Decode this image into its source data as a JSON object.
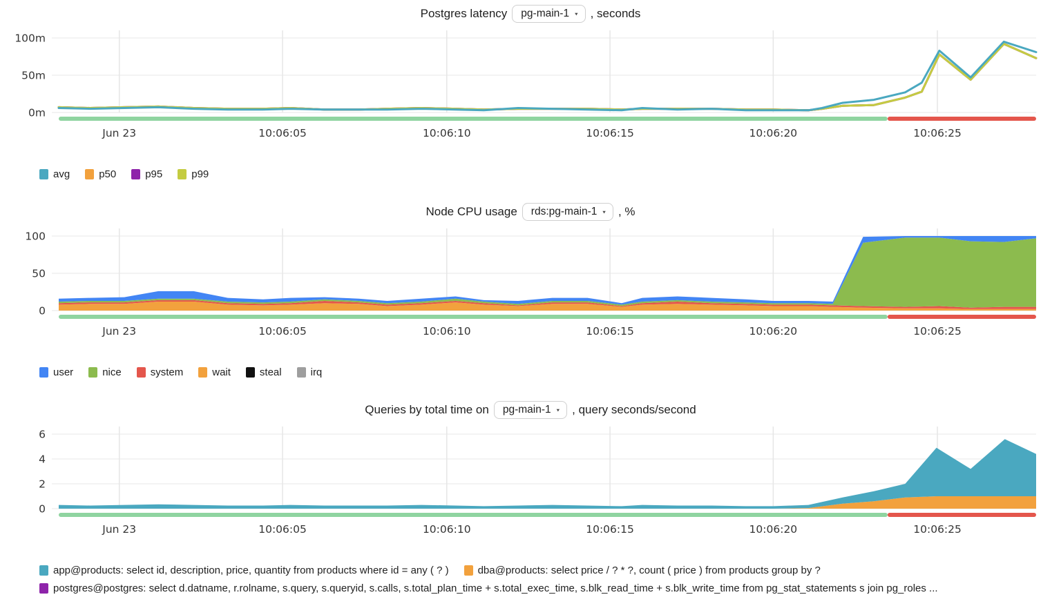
{
  "x_axis": {
    "tick_labels": [
      "Jun 23",
      "10:06:05",
      "10:06:10",
      "10:06:15",
      "10:06:20",
      "10:06:25"
    ]
  },
  "status_strip_colors": {
    "ok": "#8fd4a0",
    "alert": "#e4564c"
  },
  "chart_data": [
    {
      "type": "line",
      "title_prefix": "Postgres latency",
      "selector_value": "pg-main-1",
      "selector_caret": "▾",
      "title_suffix": ", seconds",
      "ylim": [
        0,
        107
      ],
      "y_ticks": [
        {
          "v": 0,
          "label": "0m"
        },
        {
          "v": 50,
          "label": "50m"
        },
        {
          "v": 100,
          "label": "100m"
        }
      ],
      "x_ticks": [
        {
          "f": 0.062,
          "label": "Jun 23"
        },
        {
          "f": 0.229,
          "label": "10:06:05"
        },
        {
          "f": 0.397,
          "label": "10:06:10"
        },
        {
          "f": 0.564,
          "label": "10:06:15"
        },
        {
          "f": 0.731,
          "label": "10:06:20"
        },
        {
          "f": 0.899,
          "label": "10:06:25"
        }
      ],
      "x": [
        0,
        0.032,
        0.067,
        0.102,
        0.138,
        0.173,
        0.209,
        0.237,
        0.272,
        0.307,
        0.336,
        0.371,
        0.406,
        0.435,
        0.47,
        0.505,
        0.541,
        0.576,
        0.597,
        0.633,
        0.668,
        0.703,
        0.731,
        0.767,
        0.781,
        0.802,
        0.834,
        0.866,
        0.883,
        0.901,
        0.933,
        0.967,
        1.0
      ],
      "unit": "milliseconds",
      "series": [
        {
          "name": "avg",
          "color": "#4aa8c0",
          "values": [
            6,
            5,
            6,
            7,
            5,
            4,
            4,
            5,
            4,
            4,
            4,
            5,
            4,
            3,
            6,
            5,
            4,
            3,
            6,
            4,
            5,
            3,
            3,
            3,
            6,
            13,
            17,
            27,
            40,
            83,
            47,
            95,
            81
          ]
        },
        {
          "name": "p50",
          "color": "#f2a13d",
          "values": [
            7,
            6,
            7,
            8,
            6,
            5,
            5,
            6,
            4,
            4,
            5,
            6,
            5,
            4,
            5,
            5,
            5,
            4,
            5,
            5,
            5,
            4,
            4,
            3,
            5,
            9,
            10,
            20,
            28,
            78,
            44,
            92,
            73
          ]
        },
        {
          "name": "p95",
          "color": "#8e24aa",
          "values": [
            7,
            6,
            7,
            8,
            6,
            5,
            5,
            6,
            4,
            4,
            5,
            6,
            5,
            4,
            5,
            5,
            5,
            4,
            5,
            5,
            5,
            4,
            4,
            3,
            5,
            9,
            10,
            20,
            28,
            78,
            44,
            92,
            73
          ]
        },
        {
          "name": "p99",
          "color": "#c4cc41",
          "values": [
            7,
            6,
            7,
            8,
            6,
            5,
            5,
            6,
            4,
            4,
            5,
            6,
            5,
            4,
            5,
            5,
            5,
            4,
            5,
            5,
            5,
            4,
            4,
            3,
            5,
            9,
            10,
            20,
            28,
            78,
            44,
            92,
            73
          ]
        }
      ],
      "draw_order": [
        1,
        2,
        3,
        0
      ],
      "status_strip": {
        "split_frac": 0.848
      }
    },
    {
      "type": "area",
      "title_prefix": "Node CPU usage",
      "selector_value": "rds:pg-main-1",
      "selector_caret": "▾",
      "title_suffix": ", %",
      "ylim": [
        0,
        106
      ],
      "y_ticks": [
        {
          "v": 0,
          "label": "0"
        },
        {
          "v": 50,
          "label": "50"
        },
        {
          "v": 100,
          "label": "100"
        }
      ],
      "x_ticks": [
        {
          "f": 0.062,
          "label": "Jun 23"
        },
        {
          "f": 0.229,
          "label": "10:06:05"
        },
        {
          "f": 0.397,
          "label": "10:06:10"
        },
        {
          "f": 0.564,
          "label": "10:06:15"
        },
        {
          "f": 0.731,
          "label": "10:06:20"
        },
        {
          "f": 0.899,
          "label": "10:06:25"
        }
      ],
      "x": [
        0,
        0.032,
        0.067,
        0.102,
        0.138,
        0.173,
        0.209,
        0.237,
        0.272,
        0.307,
        0.336,
        0.371,
        0.406,
        0.435,
        0.47,
        0.505,
        0.541,
        0.576,
        0.597,
        0.633,
        0.668,
        0.703,
        0.731,
        0.767,
        0.792,
        0.823,
        0.866,
        0.901,
        0.933,
        0.967,
        1.0
      ],
      "unit": "percent",
      "series": [
        {
          "name": "user",
          "color": "#4285f4",
          "values": [
            4,
            4,
            5,
            10,
            10,
            5,
            4,
            5,
            3,
            3,
            3,
            4,
            3,
            2,
            4,
            4,
            4,
            2,
            5,
            5,
            5,
            4,
            3,
            3,
            3,
            8,
            2,
            2,
            7,
            8,
            3
          ]
        },
        {
          "name": "nice",
          "color": "#8cbb4e",
          "values": [
            2,
            2,
            2,
            2,
            2,
            2,
            2,
            2,
            2,
            2,
            2,
            2,
            3,
            2,
            2,
            2,
            2,
            2,
            2,
            2,
            2,
            2,
            2,
            2,
            2,
            85,
            93,
            92,
            89,
            87,
            92
          ]
        },
        {
          "name": "system",
          "color": "#e4564c",
          "values": [
            2,
            2,
            2,
            2,
            2,
            2,
            2,
            2,
            3,
            2,
            2,
            2,
            2,
            2,
            1,
            2,
            2,
            1,
            2,
            3,
            2,
            2,
            2,
            2,
            2,
            2,
            2,
            3,
            2,
            3,
            3
          ]
        },
        {
          "name": "wait",
          "color": "#f2a13d",
          "values": [
            8,
            9,
            9,
            12,
            12,
            8,
            7,
            8,
            10,
            9,
            6,
            8,
            11,
            8,
            6,
            9,
            9,
            5,
            8,
            9,
            8,
            7,
            6,
            6,
            5,
            4,
            3,
            3,
            2,
            2,
            2
          ]
        },
        {
          "name": "steal",
          "color": "#111111",
          "values": [
            0,
            0,
            0,
            0,
            0,
            0,
            0,
            0,
            0,
            0,
            0,
            0,
            0,
            0,
            0,
            0,
            0,
            0,
            0,
            0,
            0,
            0,
            0,
            0,
            0,
            0,
            0,
            0,
            0,
            0,
            0
          ]
        },
        {
          "name": "irq",
          "color": "#9e9e9e",
          "values": [
            0,
            0,
            0,
            0,
            0,
            0,
            0,
            0,
            0,
            0,
            0,
            0,
            0,
            0,
            0,
            0,
            0,
            0,
            0,
            0,
            0,
            0,
            0,
            0,
            0,
            0,
            0,
            0,
            0,
            0,
            0
          ]
        }
      ],
      "stack_order": [
        3,
        2,
        1,
        0,
        4,
        5
      ],
      "status_strip": {
        "split_frac": 0.848
      }
    },
    {
      "type": "area",
      "title_prefix": "Queries by total time on",
      "selector_value": "pg-main-1",
      "selector_caret": "▾",
      "title_suffix": ", query seconds/second",
      "ylim": [
        0,
        6.5
      ],
      "y_ticks": [
        {
          "v": 0,
          "label": "0"
        },
        {
          "v": 2,
          "label": "2"
        },
        {
          "v": 4,
          "label": "4"
        },
        {
          "v": 6,
          "label": "6"
        }
      ],
      "x_ticks": [
        {
          "f": 0.062,
          "label": "Jun 23"
        },
        {
          "f": 0.229,
          "label": "10:06:05"
        },
        {
          "f": 0.397,
          "label": "10:06:10"
        },
        {
          "f": 0.564,
          "label": "10:06:15"
        },
        {
          "f": 0.731,
          "label": "10:06:20"
        },
        {
          "f": 0.899,
          "label": "10:06:25"
        }
      ],
      "x": [
        0,
        0.032,
        0.067,
        0.102,
        0.138,
        0.173,
        0.209,
        0.237,
        0.272,
        0.307,
        0.336,
        0.371,
        0.406,
        0.435,
        0.47,
        0.505,
        0.541,
        0.576,
        0.597,
        0.633,
        0.668,
        0.703,
        0.731,
        0.767,
        0.802,
        0.834,
        0.866,
        0.898,
        0.933,
        0.968,
        1.0
      ],
      "unit": "query seconds/second",
      "series": [
        {
          "name": "app@products: select id, description, price, quantity from products where id = any ( ? )",
          "color": "#4aa8c0",
          "values": [
            0.3,
            0.25,
            0.3,
            0.35,
            0.3,
            0.25,
            0.25,
            0.3,
            0.25,
            0.25,
            0.25,
            0.3,
            0.25,
            0.2,
            0.25,
            0.3,
            0.25,
            0.2,
            0.3,
            0.25,
            0.25,
            0.2,
            0.2,
            0.25,
            0.5,
            0.8,
            1.1,
            3.9,
            2.2,
            4.6,
            3.4
          ]
        },
        {
          "name": "dba@products: select price / ? * ?, count ( price ) from products group by ?",
          "color": "#f2a13d",
          "values": [
            0,
            0,
            0,
            0,
            0,
            0,
            0,
            0,
            0,
            0,
            0,
            0,
            0,
            0,
            0,
            0,
            0,
            0,
            0,
            0,
            0,
            0,
            0,
            0.05,
            0.4,
            0.6,
            0.9,
            1.0,
            1.0,
            1.0,
            1.0
          ]
        },
        {
          "name": "postgres@postgres: select d.datname, r.rolname, s.query, s.queryid, s.calls, s.total_plan_time + s.total_exec_time, s.blk_read_time + s.blk_write_time from pg_stat_statements s join pg_roles ...",
          "color": "#8e24aa",
          "values": [
            0,
            0,
            0,
            0,
            0,
            0,
            0,
            0,
            0,
            0,
            0,
            0,
            0,
            0,
            0,
            0,
            0,
            0,
            0,
            0,
            0,
            0,
            0,
            0,
            0,
            0,
            0,
            0,
            0,
            0,
            0
          ]
        }
      ],
      "stack_order": [
        1,
        0,
        2
      ],
      "status_strip": {
        "split_frac": 0.848
      }
    }
  ]
}
